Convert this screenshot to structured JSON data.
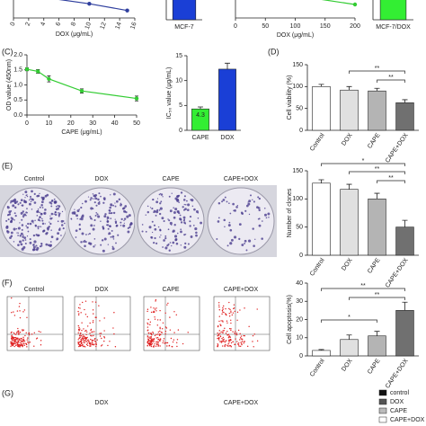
{
  "chart_data": [
    {
      "type": "line",
      "xlabel": "DOX (μg/mL)",
      "x": [
        4,
        10,
        15
      ],
      "series": [
        {
          "color": "#2f3f9e",
          "values": [
            0.55,
            0.38,
            0.2
          ]
        }
      ],
      "xlim": [
        0,
        16
      ],
      "ylim": [
        0,
        1.2
      ],
      "xticks": [
        0,
        2,
        4,
        6,
        8,
        10,
        12,
        14,
        16
      ]
    },
    {
      "type": "bar",
      "categories": [
        "MCF-7"
      ],
      "values": [
        20
      ],
      "colors": [
        "#1a3fd6"
      ],
      "ylim": [
        0,
        22
      ]
    },
    {
      "type": "line",
      "xlabel": "DOX (μg/mL)",
      "x": [
        100,
        200
      ],
      "series": [
        {
          "color": "#33cc33",
          "values": [
            0.75,
            0.45
          ]
        }
      ],
      "xlim": [
        0,
        200
      ],
      "ylim": [
        0,
        1.5
      ],
      "xticks": [
        0,
        50,
        100,
        150,
        200
      ]
    },
    {
      "type": "bar",
      "categories": [
        "MCF-7/DOX"
      ],
      "values": [
        20
      ],
      "colors": [
        "#33ee33"
      ],
      "ylim": [
        0,
        22
      ]
    },
    {
      "type": "line",
      "ylabel": "OD value (450nm)",
      "xlabel": "CAPE (μg/mL)",
      "x": [
        0,
        5,
        10,
        25,
        50
      ],
      "series": [
        {
          "color": "#33cc33",
          "values": [
            1.52,
            1.45,
            1.2,
            0.8,
            0.55
          ],
          "errors": [
            0.05,
            0.06,
            0.1,
            0.07,
            0.08
          ]
        }
      ],
      "xlim": [
        0,
        50
      ],
      "ylim": [
        0,
        2.0
      ],
      "xticks": [
        0,
        10,
        20,
        30,
        40,
        50
      ],
      "yticks": [
        {
          "value": 0,
          "label": "0.0"
        },
        {
          "value": 0.5,
          "label": "0.5"
        },
        {
          "value": 1,
          "label": "1.0"
        },
        1.5,
        {
          "value": 2,
          "label": "2.0"
        }
      ]
    },
    {
      "type": "bar",
      "ylabel": "IC₅₀ value (μg/mL)",
      "categories": [
        "CAPE",
        "DOX"
      ],
      "values": [
        4.3,
        12.3
      ],
      "errors": [
        0.4,
        1.2
      ],
      "value_labels": [
        "4.3",
        null
      ],
      "colors": [
        "#33ee33",
        "#1a3fd6"
      ],
      "ylim": [
        0,
        15
      ],
      "yticks": [
        0,
        5,
        10,
        15
      ]
    },
    {
      "type": "bar",
      "ylabel": "Cell viability (%)",
      "categories": [
        "Control",
        "DOX",
        "CAPE",
        "CAPE+DOX"
      ],
      "values": [
        100,
        92,
        90,
        63
      ],
      "errors": [
        5,
        8,
        6,
        7
      ],
      "colors": [
        "#ffffff",
        "#e0e0e0",
        "#b4b4b4",
        "#707070"
      ],
      "ylim": [
        0,
        150
      ],
      "yticks": [
        0,
        50,
        100,
        150
      ],
      "annotations": [
        "**",
        "**"
      ]
    },
    {
      "type": "bar",
      "ylabel": "Number of clones",
      "categories": [
        "Control",
        "DOX",
        "CAPE",
        "CAPE+DOX"
      ],
      "values": [
        128,
        117,
        100,
        50
      ],
      "errors": [
        6,
        9,
        10,
        12
      ],
      "colors": [
        "#ffffff",
        "#e0e0e0",
        "#b4b4b4",
        "#707070"
      ],
      "ylim": [
        0,
        150
      ],
      "yticks": [
        0,
        50,
        100,
        150
      ],
      "annotations": [
        "*",
        "**",
        "**"
      ]
    },
    {
      "type": "bar",
      "ylabel": "Cell apoptosis(%)",
      "categories": [
        "Control",
        "DOX",
        "CAPE",
        "CAPE+DOX"
      ],
      "values": [
        3,
        9,
        11,
        25
      ],
      "errors": [
        0.5,
        2.5,
        2.5,
        4.5
      ],
      "colors": [
        "#ffffff",
        "#e0e0e0",
        "#b4b4b4",
        "#707070"
      ],
      "ylim": [
        0,
        40
      ],
      "yticks": [
        0,
        10,
        20,
        30,
        40
      ],
      "annotations": [
        "**",
        "**",
        "*"
      ]
    }
  ],
  "labels": {
    "panels": [
      "(C)",
      "(D)",
      "(E)",
      "(F)",
      "(G)"
    ],
    "groups_e": [
      "Control",
      "DOX",
      "CAPE",
      "CAPE+DOX"
    ],
    "groups_f": [
      "Control",
      "DOX",
      "CAPE",
      "CAPE+DOX"
    ],
    "groups_g": [
      "DOX",
      "CAPE+DOX"
    ],
    "legend_g": [
      {
        "name": "control",
        "color": "#111111"
      },
      {
        "name": "DOX",
        "color": "#555555"
      },
      {
        "name": "CAPE",
        "color": "#bbbbbb"
      },
      {
        "name": "CAPE+DOX",
        "color": "#ffffff"
      }
    ]
  }
}
